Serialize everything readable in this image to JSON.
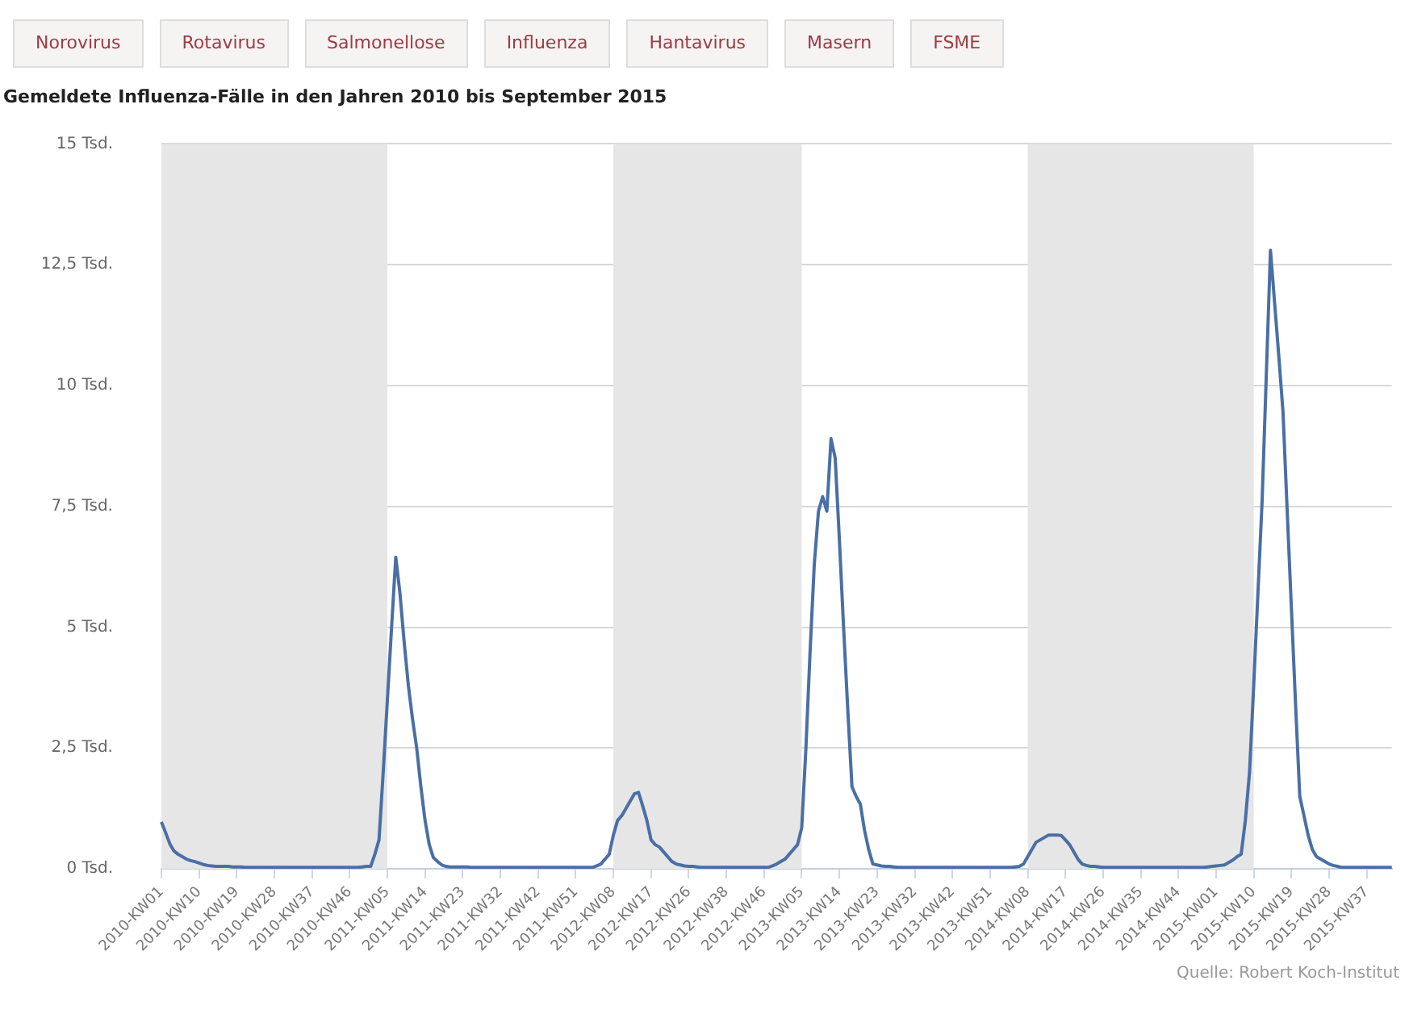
{
  "chart_data": {
    "type": "line",
    "title": "Gemeldete Influenza-Fälle in den Jahren 2010 bis September 2015",
    "annotations": [
      "Norovirus",
      "Rotavirus",
      "Salmonellose",
      "Influenza",
      "Hantavirus",
      "Masern",
      "FSME",
      "Quelle: Robert Koch-Institut"
    ],
    "categories": [
      "2010-KW01",
      null,
      null,
      null,
      null,
      null,
      null,
      null,
      null,
      "2010-KW10",
      null,
      null,
      null,
      null,
      null,
      null,
      null,
      null,
      "2010-KW19",
      null,
      null,
      null,
      null,
      null,
      null,
      null,
      null,
      "2010-KW28",
      null,
      null,
      null,
      null,
      null,
      null,
      null,
      null,
      "2010-KW37",
      null,
      null,
      null,
      null,
      null,
      null,
      null,
      null,
      "2010-KW46",
      null,
      null,
      null,
      null,
      null,
      null,
      null,
      null,
      "2011-KW05",
      null,
      null,
      null,
      null,
      null,
      null,
      null,
      null,
      "2011-KW14",
      null,
      null,
      null,
      null,
      null,
      null,
      null,
      null,
      "2011-KW23",
      null,
      null,
      null,
      null,
      null,
      null,
      null,
      null,
      "2011-KW32",
      null,
      null,
      null,
      null,
      null,
      null,
      null,
      null,
      "2011-KW42",
      null,
      null,
      null,
      null,
      null,
      null,
      null,
      null,
      "2011-KW51",
      null,
      null,
      null,
      null,
      null,
      null,
      null,
      null,
      "2012-KW08",
      null,
      null,
      null,
      null,
      null,
      null,
      null,
      null,
      "2012-KW17",
      null,
      null,
      null,
      null,
      null,
      null,
      null,
      null,
      "2012-KW26",
      null,
      null,
      null,
      null,
      null,
      null,
      null,
      null,
      "2012-KW38",
      null,
      null,
      null,
      null,
      null,
      null,
      null,
      null,
      "2012-KW46",
      null,
      null,
      null,
      null,
      null,
      null,
      null,
      null,
      "2013-KW05",
      null,
      null,
      null,
      null,
      null,
      null,
      null,
      null,
      "2013-KW14",
      null,
      null,
      null,
      null,
      null,
      null,
      null,
      null,
      "2013-KW23",
      null,
      null,
      null,
      null,
      null,
      null,
      null,
      null,
      "2013-KW32",
      null,
      null,
      null,
      null,
      null,
      null,
      null,
      null,
      "2013-KW42",
      null,
      null,
      null,
      null,
      null,
      null,
      null,
      null,
      "2013-KW51",
      null,
      null,
      null,
      null,
      null,
      null,
      null,
      null,
      "2014-KW08",
      null,
      null,
      null,
      null,
      null,
      null,
      null,
      null,
      "2014-KW17",
      null,
      null,
      null,
      null,
      null,
      null,
      null,
      null,
      "2014-KW26",
      null,
      null,
      null,
      null,
      null,
      null,
      null,
      null,
      "2014-KW35",
      null,
      null,
      null,
      null,
      null,
      null,
      null,
      null,
      "2014-KW44",
      null,
      null,
      null,
      null,
      null,
      null,
      null,
      null,
      "2015-KW01",
      null,
      null,
      null,
      null,
      null,
      null,
      null,
      null,
      "2015-KW10",
      null,
      null,
      null,
      null,
      null,
      null,
      null,
      null,
      "2015-KW19",
      null,
      null,
      null,
      null,
      null,
      null,
      null,
      null,
      "2015-KW28",
      null,
      null,
      null,
      null,
      null,
      null,
      null,
      null,
      "2015-KW37",
      null,
      null,
      null,
      null,
      null,
      null
    ],
    "series": [
      {
        "color": "#4a6fa5",
        "values": [
          0.97,
          0.75,
          0.52,
          0.37,
          0.3,
          0.25,
          0.2,
          0.17,
          0.15,
          0.12,
          0.09,
          0.07,
          0.06,
          0.05,
          0.05,
          0.05,
          0.05,
          0.04,
          0.04,
          0.04,
          0.03,
          0.03,
          0.03,
          0.03,
          0.03,
          0.03,
          0.03,
          0.03,
          0.03,
          0.03,
          0.03,
          0.03,
          0.03,
          0.03,
          0.03,
          0.03,
          0.03,
          0.03,
          0.03,
          0.03,
          0.03,
          0.03,
          0.03,
          0.03,
          0.03,
          0.03,
          0.03,
          0.03,
          0.04,
          0.05,
          0.05,
          0.3,
          0.6,
          2,
          3.5,
          5,
          6.45,
          5.7,
          4.7,
          3.8,
          3.1,
          2.5,
          1.7,
          1,
          0.5,
          0.23,
          0.15,
          0.08,
          0.05,
          0.04,
          0.04,
          0.04,
          0.04,
          0.04,
          0.03,
          0.03,
          0.03,
          0.03,
          0.03,
          0.03,
          0.03,
          0.03,
          0.03,
          0.03,
          0.03,
          0.03,
          0.03,
          0.03,
          0.03,
          0.03,
          0.03,
          0.03,
          0.03,
          0.03,
          0.03,
          0.03,
          0.03,
          0.03,
          0.03,
          0.03,
          0.03,
          0.03,
          0.03,
          0.03,
          0.06,
          0.1,
          0.2,
          0.3,
          0.7,
          1,
          1.1,
          1.25,
          1.4,
          1.55,
          1.58,
          1.3,
          1,
          0.6,
          0.5,
          0.45,
          0.35,
          0.25,
          0.15,
          0.1,
          0.08,
          0.06,
          0.05,
          0.05,
          0.04,
          0.03,
          0.03,
          0.03,
          0.03,
          0.03,
          0.03,
          0.03,
          0.03,
          0.03,
          0.03,
          0.03,
          0.03,
          0.03,
          0.03,
          0.03,
          0.03,
          0.03,
          0.06,
          0.1,
          0.15,
          0.2,
          0.3,
          0.4,
          0.5,
          0.85,
          2.5,
          4.5,
          6.3,
          7.4,
          7.7,
          7.4,
          8.9,
          8.5,
          6.8,
          5,
          3.3,
          1.7,
          1.5,
          1.34,
          0.8,
          0.4,
          0.1,
          0.08,
          0.06,
          0.05,
          0.05,
          0.04,
          0.03,
          0.03,
          0.03,
          0.03,
          0.03,
          0.03,
          0.03,
          0.03,
          0.03,
          0.03,
          0.03,
          0.03,
          0.03,
          0.03,
          0.03,
          0.03,
          0.03,
          0.03,
          0.03,
          0.03,
          0.03,
          0.03,
          0.03,
          0.03,
          0.03,
          0.03,
          0.03,
          0.03,
          0.04,
          0.05,
          0.1,
          0.25,
          0.4,
          0.55,
          0.6,
          0.65,
          0.7,
          0.7,
          0.7,
          0.69,
          0.6,
          0.5,
          0.35,
          0.2,
          0.1,
          0.07,
          0.05,
          0.05,
          0.04,
          0.03,
          0.03,
          0.03,
          0.03,
          0.03,
          0.03,
          0.03,
          0.03,
          0.03,
          0.03,
          0.03,
          0.03,
          0.03,
          0.03,
          0.03,
          0.03,
          0.03,
          0.03,
          0.03,
          0.03,
          0.03,
          0.03,
          0.03,
          0.03,
          0.03,
          0.04,
          0.05,
          0.06,
          0.07,
          0.08,
          0.13,
          0.18,
          0.25,
          0.3,
          1,
          2,
          3.8,
          5.7,
          7.6,
          10.2,
          12.8,
          11.7,
          10.6,
          9.45,
          7.4,
          5.4,
          3.4,
          1.5,
          1.1,
          0.7,
          0.4,
          0.25,
          0.2,
          0.15,
          0.1,
          0.07,
          0.05,
          0.03,
          0.03,
          0.03,
          0.03,
          0.03,
          0.03,
          0.03,
          0.03,
          0.03,
          0.03,
          0.03,
          0.03,
          0.03
        ]
      }
    ],
    "ylim": [
      0,
      15
    ],
    "yticks": [
      {
        "value": 0,
        "label": "0 Tsd."
      },
      {
        "value": 2.5,
        "label": "2,5 Tsd."
      },
      {
        "value": 5,
        "label": "5 Tsd."
      },
      {
        "value": 7.5,
        "label": "7,5 Tsd."
      },
      {
        "value": 10,
        "label": "10 Tsd."
      },
      {
        "value": 12.5,
        "label": "12,5 Tsd."
      },
      {
        "value": 15,
        "label": "15 Tsd."
      }
    ],
    "bands": [
      {
        "axis": "x",
        "from": "2010-KW01",
        "to": "2011-KW05",
        "color": "#e6e6e6"
      },
      {
        "axis": "x",
        "from": "2012-KW08",
        "to": "2013-KW05",
        "color": "#e6e6e6"
      },
      {
        "axis": "x",
        "from": "2014-KW08",
        "to": "2015-KW10",
        "color": "#e6e6e6"
      }
    ],
    "grid": "y",
    "legend": false,
    "marker": "none",
    "line_style": "solid"
  }
}
